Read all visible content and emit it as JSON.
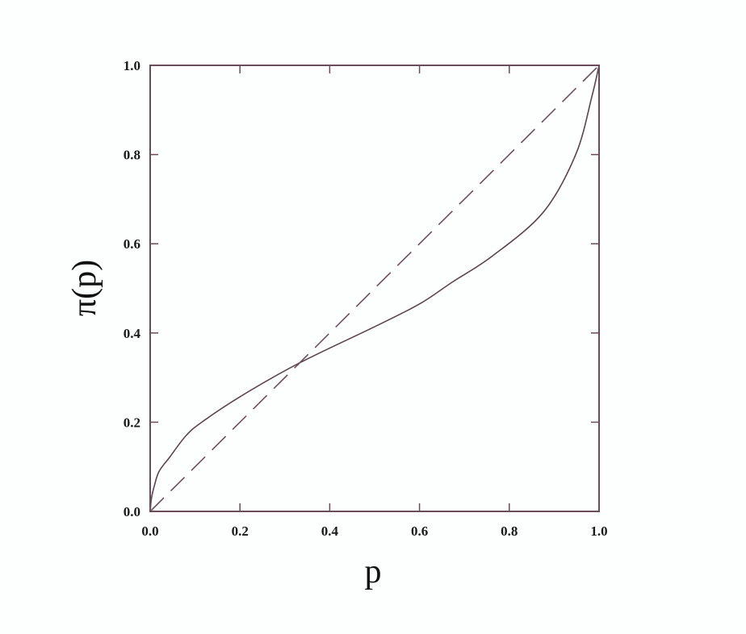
{
  "chart_data": {
    "type": "line",
    "title": "",
    "xlabel": "p",
    "ylabel": "π(p)",
    "xlim": [
      0,
      1
    ],
    "ylim": [
      0,
      1
    ],
    "xticks": [
      "0.0",
      "0.2",
      "0.4",
      "0.6",
      "0.8",
      "1.0"
    ],
    "yticks": [
      "0.0",
      "0.2",
      "0.4",
      "0.6",
      "0.8",
      "1.0"
    ],
    "grid": false,
    "axis_color": "#6b4c5a",
    "series": [
      {
        "style": "solid",
        "color": "#5a4550",
        "x": [
          0,
          0.003,
          0.01,
          0.02,
          0.043,
          0.08,
          0.115,
          0.2,
          0.333,
          0.5,
          0.6,
          0.673,
          0.763,
          0.876,
          0.948,
          0.984,
          1.0
        ],
        "y": [
          0,
          0.03,
          0.06,
          0.09,
          0.121,
          0.17,
          0.2,
          0.257,
          0.333,
          0.414,
          0.465,
          0.514,
          0.573,
          0.671,
          0.8,
          0.93,
          1.0
        ]
      },
      {
        "style": "dashed",
        "color": "#6b5060",
        "x": [
          0,
          1
        ],
        "y": [
          0,
          1
        ]
      }
    ]
  }
}
